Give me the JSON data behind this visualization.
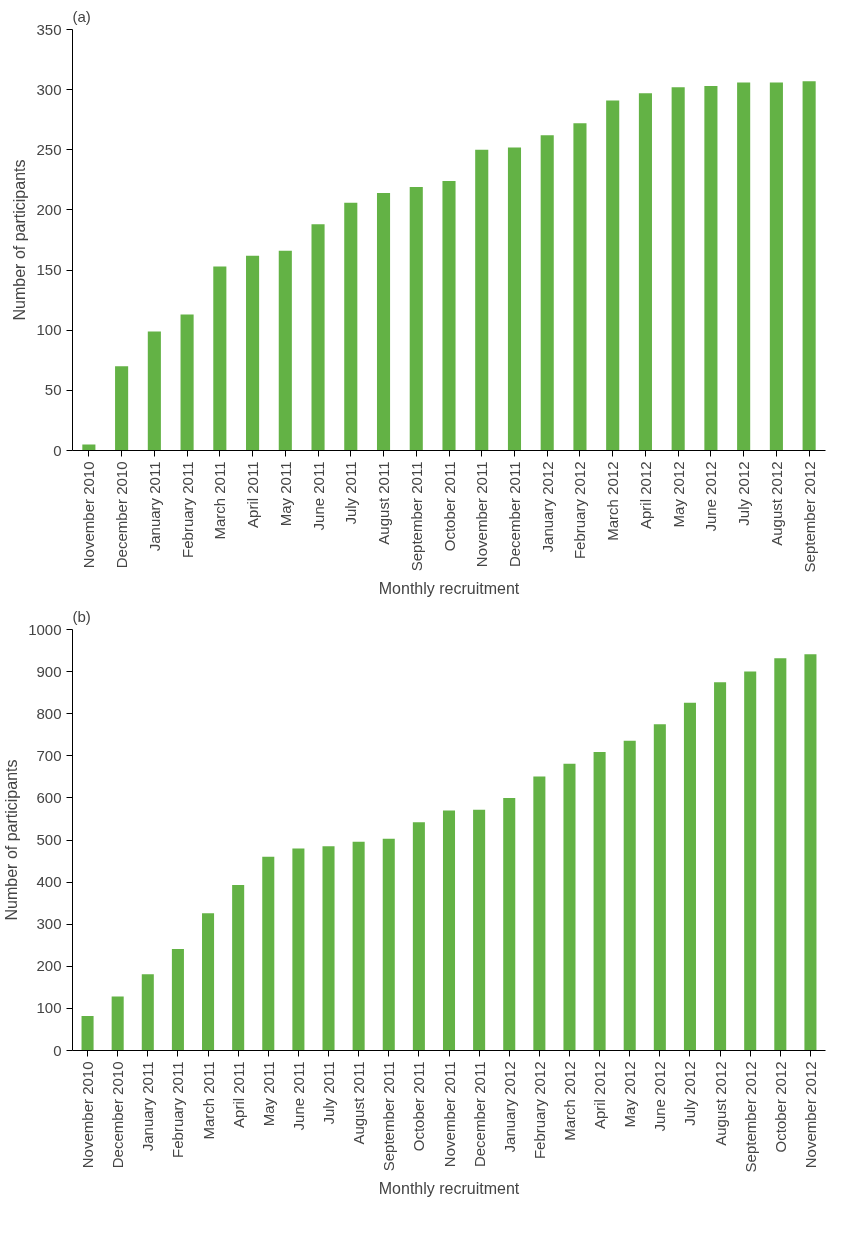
{
  "chart_data": [
    {
      "type": "bar",
      "title": "(a)",
      "xlabel": "Monthly recruitment",
      "ylabel": "Number of participants",
      "categories": [
        "November 2010",
        "December 2010",
        "January 2011",
        "February 2011",
        "March 2011",
        "April 2011",
        "May 2011",
        "June 2011",
        "July 2011",
        "August 2011",
        "September 2011",
        "October 2011",
        "November 2011",
        "December 2011",
        "January 2012",
        "February 2012",
        "March 2012",
        "April 2012",
        "May 2012",
        "June 2012",
        "July 2012",
        "August 2012",
        "September 2012"
      ],
      "series": [
        {
          "color": "#63b245",
          "values": [
            5,
            70,
            99,
            113,
            153,
            162,
            166,
            188,
            206,
            214,
            219,
            224,
            250,
            252,
            262,
            272,
            291,
            297,
            302,
            303,
            306,
            306,
            307
          ]
        }
      ],
      "ylim": [
        0,
        350
      ],
      "yticks": [
        0,
        50,
        100,
        150,
        200,
        250,
        300,
        350
      ],
      "grid": false
    },
    {
      "type": "bar",
      "title": "(b)",
      "xlabel": "Monthly recruitment",
      "ylabel": "Number of participants",
      "categories": [
        "November 2010",
        "December 2010",
        "January 2011",
        "February 2011",
        "March 2011",
        "April 2011",
        "May 2011",
        "June 2011",
        "July 2011",
        "August 2011",
        "September 2011",
        "October 2011",
        "November 2011",
        "December 2011",
        "January 2012",
        "February 2012",
        "March 2012",
        "April 2012",
        "May 2012",
        "June 2012",
        "July 2012",
        "August 2012",
        "September 2012",
        "October 2012",
        "November 2012"
      ],
      "series": [
        {
          "color": "#63b245",
          "values": [
            82,
            128,
            181,
            241,
            326,
            393,
            460,
            480,
            485,
            496,
            503,
            542,
            570,
            572,
            600,
            651,
            681,
            709,
            736,
            775,
            826,
            875,
            900,
            932,
            941
          ]
        }
      ],
      "ylim": [
        0,
        1000
      ],
      "yticks": [
        0,
        100,
        200,
        300,
        400,
        500,
        600,
        700,
        800,
        900,
        1000
      ],
      "grid": false
    }
  ]
}
